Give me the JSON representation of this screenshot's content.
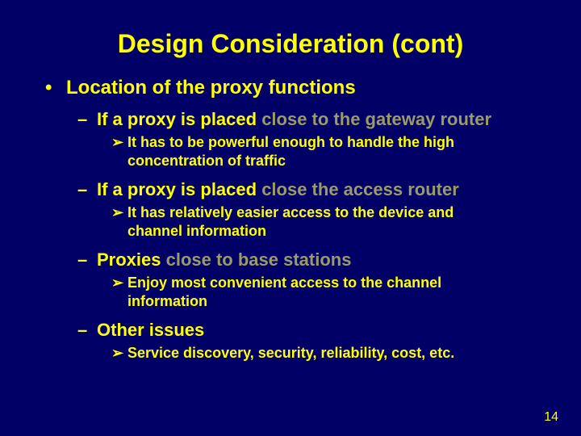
{
  "colors": {
    "background": "#000066",
    "primary_text": "#ffff00",
    "faded_text": "#9a9a6a"
  },
  "typography": {
    "title_fontsize": 32,
    "level1_fontsize": 24,
    "level2_fontsize": 22,
    "level3_fontsize": 18,
    "pagenum_fontsize": 16,
    "font_family": "Arial",
    "font_weight": "bold"
  },
  "bullets": {
    "level1": "•",
    "level2": "–",
    "level3": "➢"
  },
  "title": "Design Consideration (cont)",
  "l1_text": "Location of the proxy functions",
  "items": [
    {
      "label_a": "If a proxy is placed ",
      "label_b": "close to the gateway router",
      "sub": "It has to be powerful enough to handle the high concentration of traffic"
    },
    {
      "label_a": "If a proxy is placed ",
      "label_b": "close the access router",
      "sub": "It has relatively easier access to the device and channel information"
    },
    {
      "label_a": "Proxies ",
      "label_b": "close to base stations",
      "sub": "Enjoy most convenient access to the channel information"
    },
    {
      "label_a": "Other issues",
      "label_b": "",
      "sub": "Service discovery, security, reliability, cost, etc."
    }
  ],
  "page_number": "14"
}
